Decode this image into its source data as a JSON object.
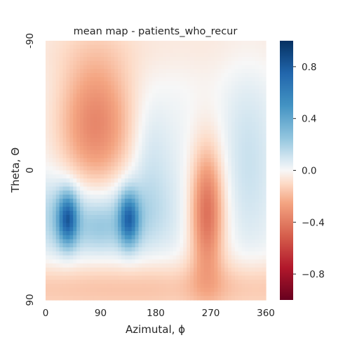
{
  "chart_data": {
    "type": "heatmap",
    "title": "mean map - patients_who_recur",
    "xlabel": "Azimutal, ϕ",
    "ylabel": "Theta, Θ",
    "x_range": [
      0,
      360
    ],
    "y_range": [
      -90,
      90
    ],
    "y_inverted": true,
    "x_ticks": [
      0,
      90,
      180,
      270,
      360
    ],
    "x_tick_labels": [
      "0",
      "90",
      "180",
      "270",
      "360"
    ],
    "y_ticks": [
      -90,
      0,
      90
    ],
    "y_tick_labels": [
      "-90",
      "0",
      "90"
    ],
    "grid": false,
    "colormap": "RdBu",
    "colorbar": {
      "vmin": -1.0,
      "vmax": 1.0,
      "ticks": [
        0.8,
        0.4,
        0.0,
        -0.4,
        -0.8
      ],
      "tick_labels": [
        "0.8",
        "0.4",
        "0.0",
        "−0.4",
        "−0.8"
      ],
      "position": "right"
    },
    "features": [
      {
        "phi": 82,
        "theta": -32,
        "value": -0.36,
        "sigma_phi": 42,
        "sigma_theta": 34
      },
      {
        "phi": 36,
        "theta": 34,
        "value": 0.62,
        "sigma_phi": 11,
        "sigma_theta": 12
      },
      {
        "phi": 136,
        "theta": 34,
        "value": 0.58,
        "sigma_phi": 11,
        "sigma_theta": 12
      },
      {
        "phi": 30,
        "theta": 32,
        "value": 0.22,
        "sigma_phi": 40,
        "sigma_theta": 20
      },
      {
        "phi": 140,
        "theta": 32,
        "value": 0.2,
        "sigma_phi": 40,
        "sigma_theta": 20
      },
      {
        "phi": 88,
        "theta": 40,
        "value": 0.12,
        "sigma_phi": 24,
        "sigma_theta": 12
      },
      {
        "phi": 264,
        "theta": 30,
        "value": -0.28,
        "sigma_phi": 16,
        "sigma_theta": 28
      },
      {
        "phi": 262,
        "theta": 28,
        "value": -0.18,
        "sigma_phi": 26,
        "sigma_theta": 36
      },
      {
        "phi": 170,
        "theta": -12,
        "value": 0.1,
        "sigma_phi": 22,
        "sigma_theta": 28
      },
      {
        "phi": 330,
        "theta": -5,
        "value": 0.12,
        "sigma_phi": 32,
        "sigma_theta": 45
      },
      {
        "phi": 220,
        "theta": 20,
        "value": 0.06,
        "sigma_phi": 25,
        "sigma_theta": 45
      },
      {
        "phi": 180,
        "theta": 82,
        "value": -0.17,
        "sigma_phi": 400,
        "sigma_theta": 14
      },
      {
        "phi": 180,
        "theta": -88,
        "value": -0.05,
        "sigma_phi": 400,
        "sigma_theta": 18
      }
    ]
  }
}
